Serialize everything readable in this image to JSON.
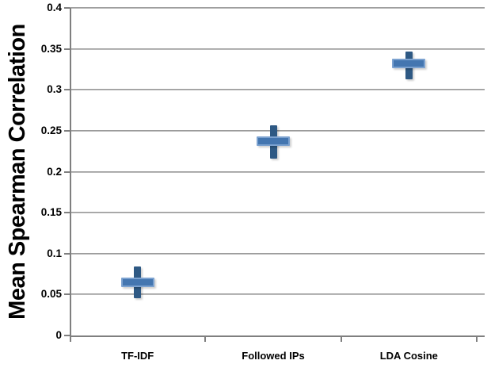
{
  "chart_data": {
    "type": "scatter",
    "title": "",
    "xlabel": "",
    "ylabel": "Mean Spearman Correlation",
    "ylim": [
      0,
      0.4
    ],
    "y_ticks": [
      "0",
      "0.05",
      "0.1",
      "0.15",
      "0.2",
      "0.25",
      "0.3",
      "0.35",
      "0.4"
    ],
    "grid": "horizontal",
    "legend_position": "none",
    "marker_shape": "plus-with-vertical-error-bar",
    "categories": [
      "TF-IDF",
      "Followed IPs",
      "LDA Cosine"
    ],
    "series": [
      {
        "name": "Mean Spearman Correlation",
        "values": [
          0.065,
          0.237,
          0.332
        ],
        "error_low": [
          0.046,
          0.216,
          0.313
        ],
        "error_high": [
          0.084,
          0.257,
          0.347
        ]
      }
    ],
    "colors": {
      "marker_fill": "#4476B0",
      "marker_edge": "#7CA2D0",
      "error_bar": "#2E5984",
      "gridline": "#8C8C8C",
      "axis": "#7F7F7F",
      "text": "#000000",
      "background": "#FFFFFF"
    }
  }
}
